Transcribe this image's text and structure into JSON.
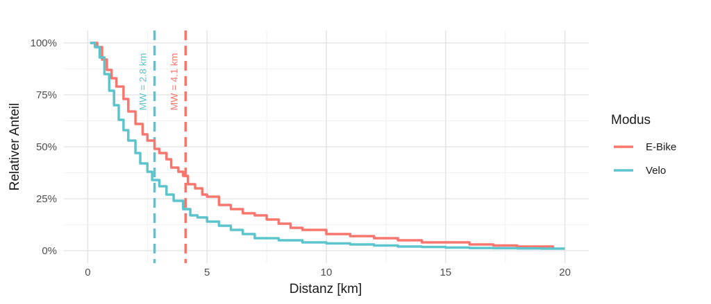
{
  "chart_data": {
    "type": "line",
    "title": "",
    "xlabel": "Distanz [km]",
    "ylabel": "Relativer Anteil",
    "xlim": [
      -1,
      21
    ],
    "ylim": [
      0,
      100
    ],
    "x_ticks": [
      0,
      5,
      10,
      15,
      20
    ],
    "x_tick_labels": [
      "0",
      "5",
      "10",
      "15",
      "20"
    ],
    "y_ticks": [
      0,
      25,
      50,
      75,
      100
    ],
    "y_tick_labels": [
      "0%",
      "25%",
      "50%",
      "75%",
      "100%"
    ],
    "grid": true,
    "legend": {
      "title": "Modus",
      "position": "right"
    },
    "series": [
      {
        "name": "E-Bike",
        "color": "#F8766D",
        "x": [
          0.1,
          0.4,
          0.6,
          0.8,
          1.0,
          1.2,
          1.5,
          1.7,
          2.0,
          2.3,
          2.5,
          2.8,
          3.0,
          3.3,
          3.5,
          3.8,
          4.0,
          4.2,
          4.5,
          4.8,
          5.0,
          5.5,
          6.0,
          6.5,
          7.0,
          7.5,
          8.0,
          8.5,
          9.0,
          10.0,
          11.0,
          12.0,
          13.0,
          14.0,
          15.0,
          16.0,
          17.0,
          18.0,
          19.0,
          19.5
        ],
        "values": [
          100,
          98,
          92,
          87,
          83,
          79,
          73,
          67,
          61,
          56,
          53,
          49,
          47,
          44,
          40,
          38,
          36,
          32,
          30,
          27,
          26,
          22,
          20,
          18,
          17,
          15,
          13,
          11,
          10,
          8,
          7,
          6,
          5,
          4,
          4,
          3,
          2.5,
          2,
          2,
          1.5
        ]
      },
      {
        "name": "Velo",
        "color": "#5BC4CD",
        "x": [
          0.1,
          0.3,
          0.5,
          0.7,
          0.9,
          1.1,
          1.3,
          1.5,
          1.7,
          2.0,
          2.2,
          2.5,
          2.7,
          3.0,
          3.3,
          3.6,
          4.0,
          4.3,
          4.6,
          5.0,
          5.5,
          6.0,
          6.5,
          7.0,
          8.0,
          9.0,
          10.0,
          11.0,
          12.0,
          13.0,
          14.0,
          15.0,
          16.0,
          17.0,
          18.0,
          19.0,
          20.0
        ],
        "values": [
          100,
          98,
          93,
          85,
          77,
          70,
          63,
          58,
          53,
          47,
          42,
          38,
          34,
          31,
          27,
          24,
          20,
          17,
          16,
          14,
          12,
          10,
          8,
          6,
          5,
          4,
          3.5,
          3,
          2.5,
          2,
          1.8,
          1.5,
          1.3,
          1.2,
          1.1,
          1.0,
          1.0
        ]
      }
    ],
    "annotations": [
      {
        "text": "MW = 2.8 km",
        "x": 2.8,
        "series": "Velo",
        "color": "#5BC4CD"
      },
      {
        "text": "MW = 4.1 km",
        "x": 4.1,
        "series": "E-Bike",
        "color": "#F8766D"
      }
    ]
  }
}
